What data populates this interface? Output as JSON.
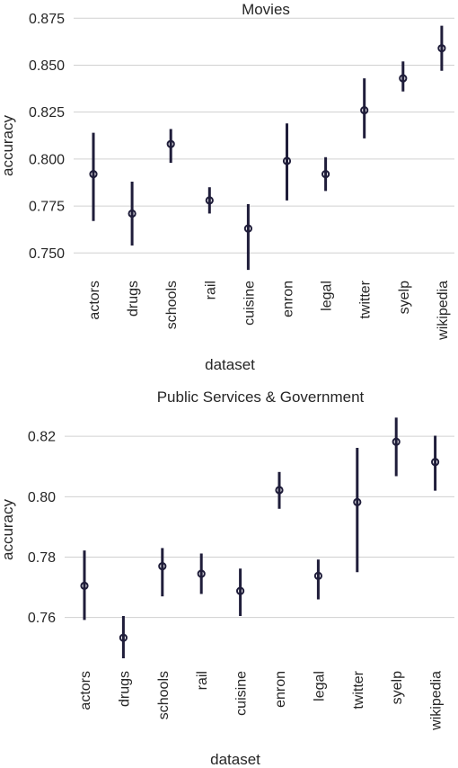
{
  "chart_data": [
    {
      "type": "scatter",
      "title": "Movies",
      "xlabel": "dataset",
      "ylabel": "accuracy",
      "categories": [
        "actors",
        "drugs",
        "schools",
        "rail",
        "cuisine",
        "enron",
        "legal",
        "twitter",
        "syelp",
        "wikipedia"
      ],
      "values": [
        0.792,
        0.771,
        0.808,
        0.778,
        0.763,
        0.799,
        0.792,
        0.826,
        0.843,
        0.859
      ],
      "ci_low": [
        0.767,
        0.754,
        0.798,
        0.771,
        0.741,
        0.778,
        0.783,
        0.811,
        0.836,
        0.847
      ],
      "ci_high": [
        0.814,
        0.788,
        0.816,
        0.785,
        0.776,
        0.819,
        0.801,
        0.843,
        0.852,
        0.871
      ],
      "ylim": [
        0.742,
        0.878
      ],
      "yticks": [
        "0.750",
        "0.775",
        "0.800",
        "0.825",
        "0.850",
        "0.875"
      ],
      "grid": true,
      "color": "#1f1d3a"
    },
    {
      "type": "scatter",
      "title": "Public Services & Government",
      "xlabel": "dataset",
      "ylabel": "accuracy",
      "categories": [
        "actors",
        "drugs",
        "schools",
        "rail",
        "cuisine",
        "enron",
        "legal",
        "twitter",
        "syelp",
        "wikipedia"
      ],
      "values": [
        0.7705,
        0.7533,
        0.777,
        0.7745,
        0.7688,
        0.8022,
        0.7738,
        0.7982,
        0.8182,
        0.8115
      ],
      "ci_low": [
        0.7592,
        0.7465,
        0.767,
        0.7678,
        0.7605,
        0.796,
        0.766,
        0.775,
        0.8068,
        0.802
      ],
      "ci_high": [
        0.7822,
        0.7605,
        0.783,
        0.7812,
        0.7762,
        0.8082,
        0.7792,
        0.8162,
        0.8262,
        0.8202
      ],
      "ylim": [
        0.7465,
        0.8275
      ],
      "yticks": [
        "0.76",
        "0.78",
        "0.80",
        "0.82"
      ],
      "grid": true,
      "color": "#1f1d3a"
    }
  ]
}
